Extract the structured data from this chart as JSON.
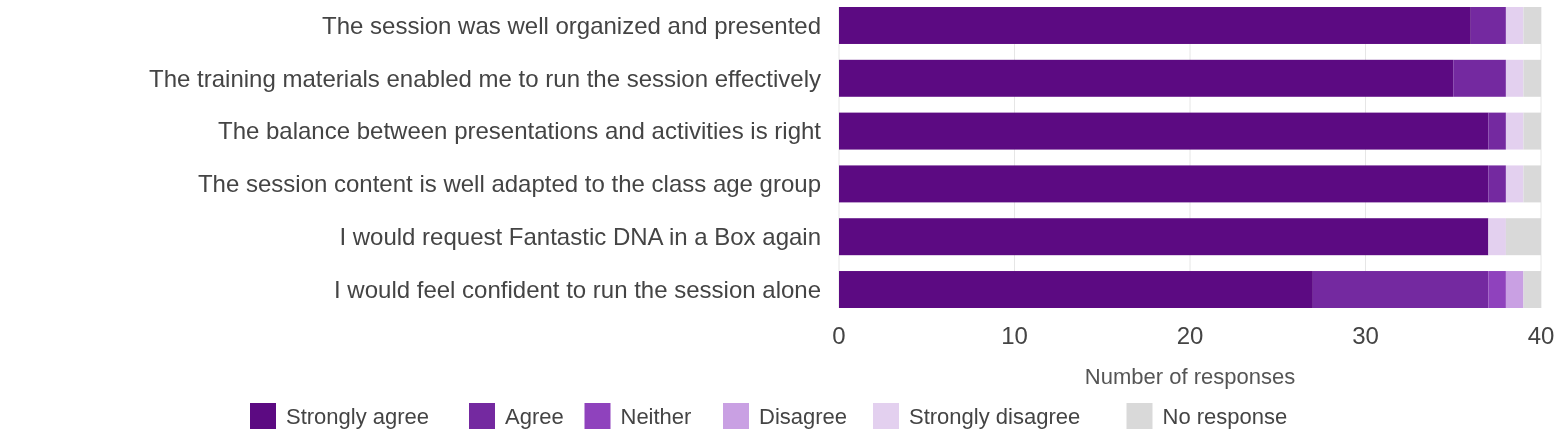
{
  "chart_data": {
    "type": "bar",
    "orientation": "horizontal",
    "stacked": true,
    "xlabel": "Number of responses",
    "categories": [
      "The session was well organized and presented",
      "The training materials enabled me to run the session effectively",
      "The balance between presentations and activities is right",
      "The session content is well adapted to the class age group",
      "I would request Fantastic DNA in a Box again",
      "I would feel confident to run the session alone"
    ],
    "series": [
      {
        "name": "Strongly agree",
        "color": "#5c0a82",
        "values": [
          36,
          35,
          37,
          37,
          37,
          27
        ]
      },
      {
        "name": "Agree",
        "color": "#7429a0",
        "values": [
          2,
          3,
          1,
          1,
          0,
          10
        ]
      },
      {
        "name": "Neither",
        "color": "#8f42bd",
        "values": [
          0,
          0,
          0,
          0,
          0,
          1
        ]
      },
      {
        "name": "Disagree",
        "color": "#c9a0e3",
        "values": [
          0,
          0,
          0,
          0,
          0,
          1
        ]
      },
      {
        "name": "Strongly disagree",
        "color": "#e3d0ef",
        "values": [
          1,
          1,
          1,
          1,
          1,
          0
        ]
      },
      {
        "name": "No response",
        "color": "#d9d9d9",
        "values": [
          1,
          1,
          1,
          1,
          2,
          1
        ]
      }
    ],
    "xlim": [
      0,
      40
    ],
    "xticks": [
      0,
      10,
      20,
      30,
      40
    ],
    "grid": "x",
    "legend": "bottom"
  }
}
